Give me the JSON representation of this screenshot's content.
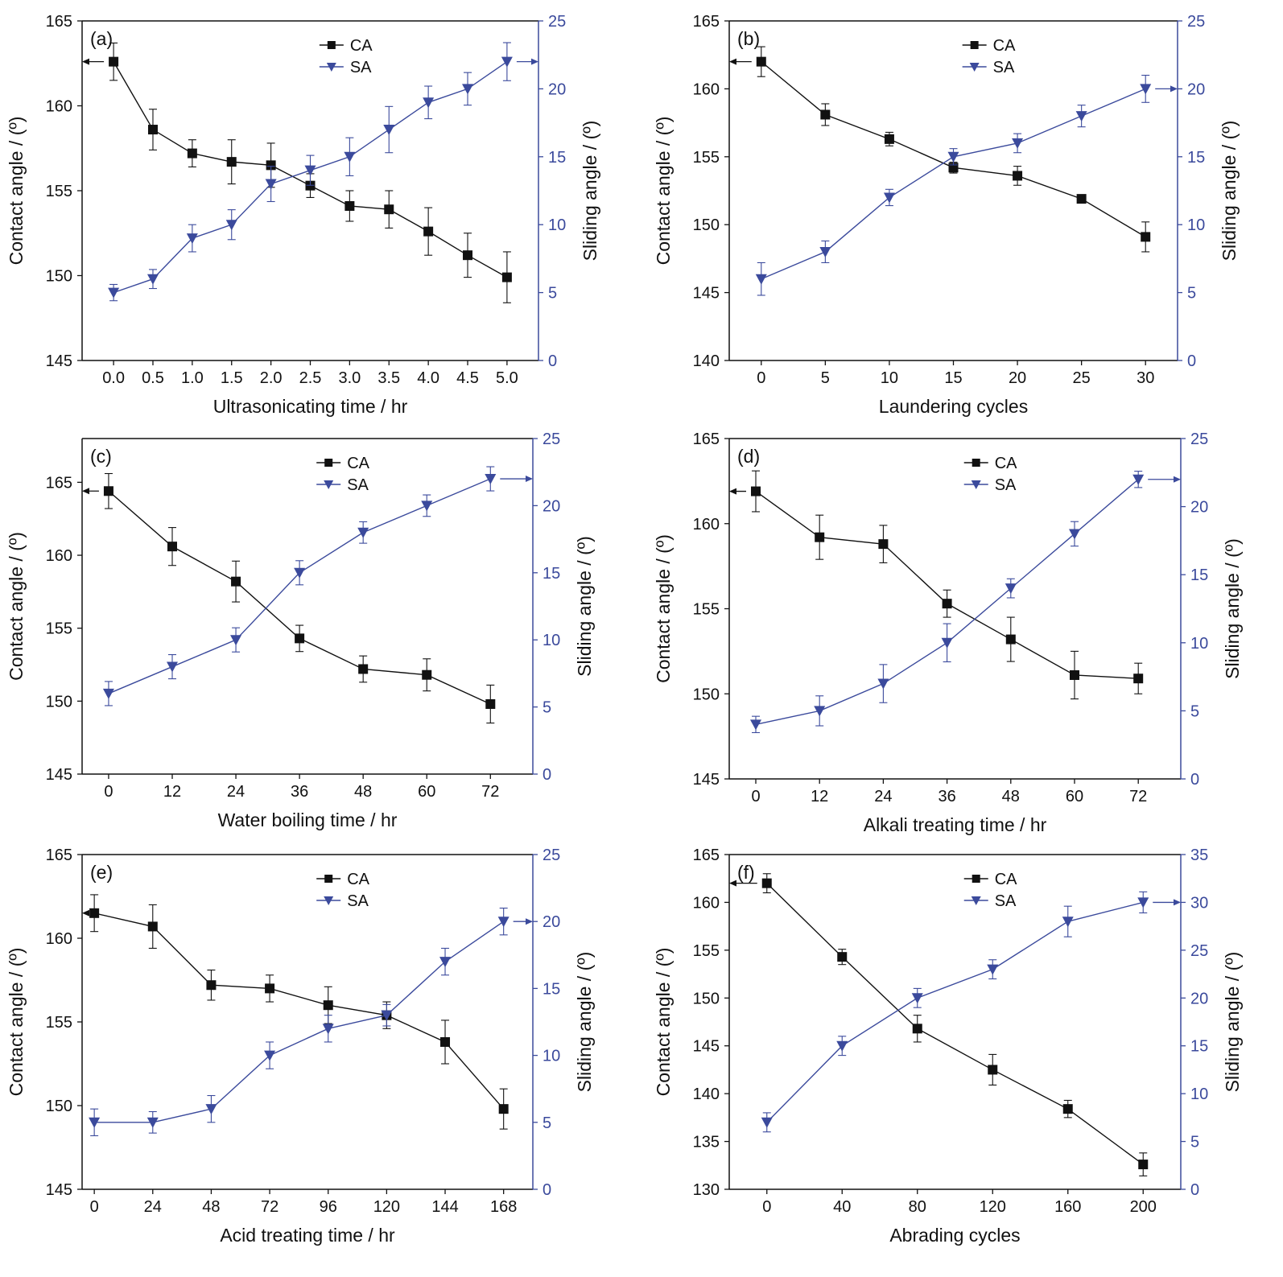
{
  "colors": {
    "ca": "#111111",
    "sa": "#3b4a9c",
    "right_axis": "#3b4a9c"
  },
  "chart_data": [
    {
      "type": "line",
      "panel_label": "(a)",
      "xlabel": "Ultrasonicating time / hr",
      "ylabel": "Contact angle / (º)",
      "y2label": "Sliding angle / (º)",
      "x_ticks": [
        "0.0",
        "0.5",
        "1.0",
        "1.5",
        "2.0",
        "2.5",
        "3.0",
        "3.5",
        "4.0",
        "4.5",
        "5.0"
      ],
      "x": [
        0,
        0.5,
        1.0,
        1.5,
        2.0,
        2.5,
        3.0,
        3.5,
        4.0,
        4.5,
        5.0
      ],
      "xlim": [
        -0.4,
        5.4
      ],
      "ylim": [
        145,
        165
      ],
      "y_ticks": [
        "145",
        "150",
        "155",
        "160",
        "165"
      ],
      "y2lim": [
        0,
        25
      ],
      "y2_ticks": [
        "0",
        "5",
        "10",
        "15",
        "20",
        "25"
      ],
      "legend": [
        "CA",
        "SA"
      ],
      "legend_position": "top-right",
      "series": [
        {
          "name": "CA",
          "axis": "left",
          "marker": "square",
          "values": [
            162.6,
            158.6,
            157.2,
            156.7,
            156.5,
            155.3,
            154.1,
            153.9,
            152.6,
            151.2,
            149.9
          ],
          "errors": [
            1.1,
            1.2,
            0.8,
            1.3,
            1.3,
            0.7,
            0.9,
            1.1,
            1.4,
            1.3,
            1.5
          ]
        },
        {
          "name": "SA",
          "axis": "right",
          "marker": "triangle-down",
          "values": [
            5,
            6,
            9,
            10,
            13,
            14,
            15,
            17,
            19,
            20,
            22
          ],
          "errors": [
            0.6,
            0.7,
            1.0,
            1.1,
            1.3,
            1.1,
            1.4,
            1.7,
            1.2,
            1.2,
            1.4
          ]
        }
      ]
    },
    {
      "type": "line",
      "panel_label": "(b)",
      "xlabel": "Laundering cycles",
      "ylabel": "Contact angle / (º)",
      "y2label": "Sliding angle / (º)",
      "x_ticks": [
        "0",
        "5",
        "10",
        "15",
        "20",
        "25",
        "30"
      ],
      "x": [
        0,
        5,
        10,
        15,
        20,
        25,
        30
      ],
      "xlim": [
        -2.5,
        32.5
      ],
      "ylim": [
        140,
        165
      ],
      "y_ticks": [
        "140",
        "145",
        "150",
        "155",
        "160",
        "165"
      ],
      "y2lim": [
        0,
        25
      ],
      "y2_ticks": [
        "0",
        "5",
        "10",
        "15",
        "20",
        "25"
      ],
      "legend": [
        "CA",
        "SA"
      ],
      "legend_position": "top-right",
      "series": [
        {
          "name": "CA",
          "axis": "left",
          "marker": "square",
          "values": [
            162.0,
            158.1,
            156.3,
            154.2,
            153.6,
            151.9,
            149.1
          ],
          "errors": [
            1.1,
            0.8,
            0.5,
            0.4,
            0.7,
            0.3,
            1.1
          ]
        },
        {
          "name": "SA",
          "axis": "right",
          "marker": "triangle-down",
          "values": [
            6,
            8,
            12,
            15,
            16,
            18,
            20
          ],
          "errors": [
            1.2,
            0.8,
            0.6,
            0.6,
            0.7,
            0.8,
            1.0
          ]
        }
      ]
    },
    {
      "type": "line",
      "panel_label": "(c)",
      "xlabel": "Water boiling  time / hr",
      "ylabel": "Contact angle / (º)",
      "y2label": "Sliding angle / (º)",
      "x_ticks": [
        "0",
        "12",
        "24",
        "36",
        "48",
        "60",
        "72"
      ],
      "x": [
        0,
        12,
        24,
        36,
        48,
        60,
        72
      ],
      "xlim": [
        -5,
        80
      ],
      "ylim": [
        145,
        168
      ],
      "y_ticks": [
        "145",
        "150",
        "155",
        "160",
        "165"
      ],
      "y2lim": [
        0,
        25
      ],
      "y2_ticks": [
        "0",
        "5",
        "10",
        "15",
        "20",
        "25"
      ],
      "legend": [
        "CA",
        "SA"
      ],
      "legend_position": "top-right",
      "series": [
        {
          "name": "CA",
          "axis": "left",
          "marker": "square",
          "values": [
            164.4,
            160.6,
            158.2,
            154.3,
            152.2,
            151.8,
            149.8
          ],
          "errors": [
            1.2,
            1.3,
            1.4,
            0.9,
            0.9,
            1.1,
            1.3
          ]
        },
        {
          "name": "SA",
          "axis": "right",
          "marker": "triangle-down",
          "values": [
            6,
            8,
            10,
            15,
            18,
            20,
            22
          ],
          "errors": [
            0.9,
            0.9,
            0.9,
            0.9,
            0.8,
            0.8,
            0.9
          ]
        }
      ]
    },
    {
      "type": "line",
      "panel_label": "(d)",
      "xlabel": "Alkali treating time / hr",
      "ylabel": "Contact angle / (º)",
      "y2label": "Sliding angle / (º)",
      "x_ticks": [
        "0",
        "12",
        "24",
        "36",
        "48",
        "60",
        "72"
      ],
      "x": [
        0,
        12,
        24,
        36,
        48,
        60,
        72
      ],
      "xlim": [
        -5,
        80
      ],
      "ylim": [
        145,
        165
      ],
      "y_ticks": [
        "145",
        "150",
        "155",
        "160",
        "165"
      ],
      "y2lim": [
        0,
        25
      ],
      "y2_ticks": [
        "0",
        "5",
        "10",
        "15",
        "20",
        "25"
      ],
      "legend": [
        "CA",
        "SA"
      ],
      "legend_position": "top-right",
      "series": [
        {
          "name": "CA",
          "axis": "left",
          "marker": "square",
          "values": [
            161.9,
            159.2,
            158.8,
            155.3,
            153.2,
            151.1,
            150.9
          ],
          "errors": [
            1.2,
            1.3,
            1.1,
            0.8,
            1.3,
            1.4,
            0.9
          ]
        },
        {
          "name": "SA",
          "axis": "right",
          "marker": "triangle-down",
          "values": [
            4,
            5,
            7,
            10,
            14,
            18,
            22
          ],
          "errors": [
            0.6,
            1.1,
            1.4,
            1.4,
            0.7,
            0.9,
            0.6
          ]
        }
      ]
    },
    {
      "type": "line",
      "panel_label": "(e)",
      "xlabel": "Acid treating time / hr",
      "ylabel": "Contact angle / (º)",
      "y2label": "Sliding angle / (º)",
      "x_ticks": [
        "0",
        "24",
        "48",
        "72",
        "96",
        "120",
        "144",
        "168"
      ],
      "x": [
        0,
        24,
        48,
        72,
        96,
        120,
        144,
        168
      ],
      "xlim": [
        -5,
        180
      ],
      "ylim": [
        145,
        165
      ],
      "y_ticks": [
        "145",
        "150",
        "155",
        "160",
        "165"
      ],
      "y2lim": [
        0,
        25
      ],
      "y2_ticks": [
        "0",
        "5",
        "10",
        "15",
        "20",
        "25"
      ],
      "legend": [
        "CA",
        "SA"
      ],
      "legend_position": "top-right",
      "series": [
        {
          "name": "CA",
          "axis": "left",
          "marker": "square",
          "values": [
            161.5,
            160.7,
            157.2,
            157.0,
            156.0,
            155.4,
            153.8,
            149.8
          ],
          "errors": [
            1.1,
            1.3,
            0.9,
            0.8,
            1.1,
            0.8,
            1.3,
            1.2
          ]
        },
        {
          "name": "SA",
          "axis": "right",
          "marker": "triangle-down",
          "values": [
            5,
            5,
            6,
            10,
            12,
            13,
            17,
            20
          ],
          "errors": [
            1.0,
            0.8,
            1.0,
            1.0,
            1.0,
            0.8,
            1.0,
            1.0
          ]
        }
      ]
    },
    {
      "type": "line",
      "panel_label": "(f)",
      "xlabel": "Abrading cycles",
      "ylabel": "Contact angle / (º)",
      "y2label": "Sliding angle / (º)",
      "x_ticks": [
        "0",
        "40",
        "80",
        "120",
        "160",
        "200"
      ],
      "x": [
        0,
        40,
        80,
        120,
        160,
        200
      ],
      "xlim": [
        -20,
        220
      ],
      "ylim": [
        130,
        165
      ],
      "y_ticks": [
        "130",
        "135",
        "140",
        "145",
        "150",
        "155",
        "160",
        "165"
      ],
      "y2lim": [
        0,
        35
      ],
      "y2_ticks": [
        "0",
        "5",
        "10",
        "15",
        "20",
        "25",
        "30",
        "35"
      ],
      "legend": [
        "CA",
        "SA"
      ],
      "legend_position": "top-right",
      "series": [
        {
          "name": "CA",
          "axis": "left",
          "marker": "square",
          "values": [
            162.0,
            154.3,
            146.8,
            142.5,
            138.4,
            132.6
          ],
          "errors": [
            1.0,
            0.8,
            1.4,
            1.6,
            0.9,
            1.2
          ]
        },
        {
          "name": "SA",
          "axis": "right",
          "marker": "triangle-down",
          "values": [
            7,
            15,
            20,
            23,
            28,
            30
          ],
          "errors": [
            1.0,
            1.0,
            1.0,
            1.0,
            1.6,
            1.1
          ]
        }
      ]
    }
  ]
}
